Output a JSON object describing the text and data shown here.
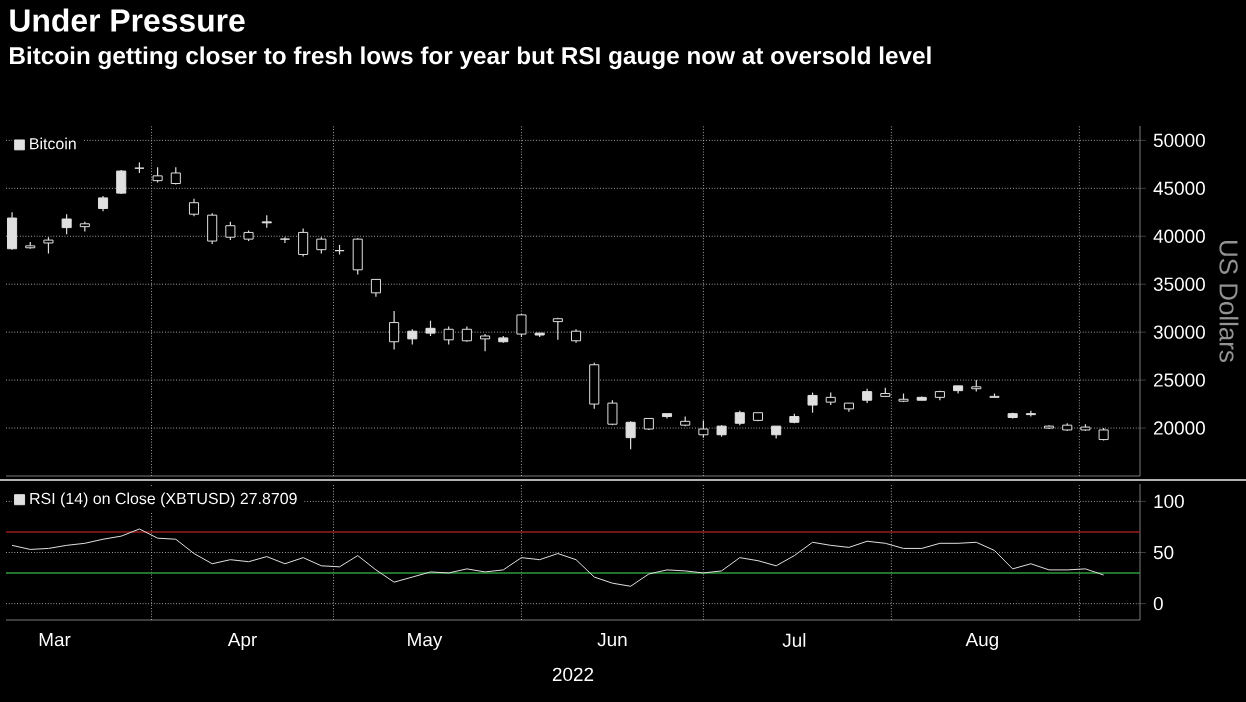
{
  "chart_data": [
    {
      "type": "candlestick",
      "title": "Under Pressure",
      "subtitle": "Bitcoin getting closer to fresh lows for year but RSI gauge now at oversold level",
      "ylabel": "US Dollars",
      "legend": "top left",
      "grid": true,
      "tick_labels": "y",
      "xlim": [
        "2022-03-08",
        "2022-09-11"
      ],
      "xticks": [
        {
          "value": "2022-04-01",
          "label": null
        },
        {
          "value": "2022-05-01",
          "label": null
        },
        {
          "value": "2022-06-01",
          "label": null
        },
        {
          "value": "2022-07-01",
          "label": null
        },
        {
          "value": "2022-08-01",
          "label": null
        },
        {
          "value": "2022-09-01",
          "label": null
        }
      ],
      "ylim": [
        15000,
        51500
      ],
      "yticks": [
        20000,
        25000,
        30000,
        35000,
        40000,
        45000,
        50000
      ],
      "x": [
        "2022-03-09",
        "2022-03-12",
        "2022-03-15",
        "2022-03-18",
        "2022-03-21",
        "2022-03-24",
        "2022-03-27",
        "2022-03-30",
        "2022-04-02",
        "2022-04-05",
        "2022-04-08",
        "2022-04-11",
        "2022-04-14",
        "2022-04-17",
        "2022-04-20",
        "2022-04-23",
        "2022-04-26",
        "2022-04-29",
        "2022-05-02",
        "2022-05-05",
        "2022-05-08",
        "2022-05-11",
        "2022-05-14",
        "2022-05-17",
        "2022-05-20",
        "2022-05-23",
        "2022-05-26",
        "2022-05-29",
        "2022-06-01",
        "2022-06-04",
        "2022-06-07",
        "2022-06-10",
        "2022-06-13",
        "2022-06-16",
        "2022-06-19",
        "2022-06-22",
        "2022-06-25",
        "2022-06-28",
        "2022-07-01",
        "2022-07-04",
        "2022-07-07",
        "2022-07-10",
        "2022-07-13",
        "2022-07-16",
        "2022-07-19",
        "2022-07-22",
        "2022-07-25",
        "2022-07-28",
        "2022-07-31",
        "2022-08-03",
        "2022-08-06",
        "2022-08-09",
        "2022-08-12",
        "2022-08-15",
        "2022-08-18",
        "2022-08-21",
        "2022-08-24",
        "2022-08-27",
        "2022-08-30",
        "2022-09-02",
        "2022-09-05"
      ],
      "series": [
        {
          "name": "Bitcoin",
          "color": "#e0e0e0",
          "ohlc": [
            [
              38700,
              42500,
              38600,
              41900
            ],
            [
              39000,
              39400,
              38700,
              38800
            ],
            [
              39600,
              39900,
              38200,
              39300
            ],
            [
              40900,
              42300,
              40200,
              41800
            ],
            [
              41300,
              41500,
              40500,
              41000
            ],
            [
              42900,
              44200,
              42600,
              44000
            ],
            [
              44500,
              46900,
              44400,
              46800
            ],
            [
              47100,
              47700,
              46600,
              47100
            ],
            [
              46300,
              47200,
              45600,
              45800
            ],
            [
              46600,
              47200,
              45400,
              45500
            ],
            [
              43500,
              43900,
              42100,
              42300
            ],
            [
              42200,
              42400,
              39200,
              39500
            ],
            [
              41100,
              41500,
              39600,
              39900
            ],
            [
              40400,
              40600,
              39500,
              39700
            ],
            [
              41400,
              42200,
              40900,
              41500
            ],
            [
              39700,
              39900,
              39300,
              39700
            ],
            [
              40400,
              40800,
              37900,
              38100
            ],
            [
              39700,
              39900,
              38200,
              38600
            ],
            [
              38500,
              39100,
              38100,
              38500
            ],
            [
              39700,
              39800,
              36000,
              36500
            ],
            [
              35500,
              35500,
              33700,
              34100
            ],
            [
              31000,
              32200,
              28200,
              29000
            ],
            [
              29300,
              30300,
              28700,
              30100
            ],
            [
              29900,
              31200,
              29600,
              30400
            ],
            [
              30300,
              30600,
              28700,
              29200
            ],
            [
              30300,
              30600,
              29000,
              29100
            ],
            [
              29600,
              29800,
              28000,
              29300
            ],
            [
              29000,
              29600,
              28900,
              29400
            ],
            [
              31800,
              31900,
              29500,
              29800
            ],
            [
              29700,
              29900,
              29500,
              29900
            ],
            [
              31400,
              31500,
              29200,
              31100
            ],
            [
              30100,
              30300,
              28900,
              29100
            ],
            [
              26600,
              26800,
              22000,
              22500
            ],
            [
              22600,
              22900,
              20300,
              20400
            ],
            [
              19000,
              20700,
              17800,
              20600
            ],
            [
              21000,
              21000,
              19800,
              19900
            ],
            [
              21200,
              21500,
              21000,
              21500
            ],
            [
              20700,
              21200,
              20200,
              20300
            ],
            [
              19900,
              20800,
              19000,
              19300
            ],
            [
              19300,
              20300,
              19100,
              20200
            ],
            [
              20500,
              21800,
              20300,
              21600
            ],
            [
              21600,
              21600,
              20700,
              20800
            ],
            [
              19300,
              20200,
              18900,
              20200
            ],
            [
              20600,
              21500,
              20500,
              21200
            ],
            [
              22400,
              23700,
              21600,
              23400
            ],
            [
              23200,
              23700,
              22400,
              22700
            ],
            [
              22600,
              22600,
              21700,
              22000
            ],
            [
              22900,
              24100,
              22600,
              23800
            ],
            [
              23600,
              24200,
              23300,
              23300
            ],
            [
              23000,
              23600,
              22700,
              22800
            ],
            [
              22900,
              23300,
              22900,
              23200
            ],
            [
              23800,
              23900,
              22900,
              23200
            ],
            [
              23900,
              24400,
              23600,
              24400
            ],
            [
              24300,
              25000,
              23800,
              24100
            ],
            [
              23300,
              23600,
              23200,
              23200
            ],
            [
              21100,
              21600,
              21000,
              21500
            ],
            [
              21400,
              21800,
              21200,
              21500
            ],
            [
              20200,
              20300,
              19900,
              20000
            ],
            [
              20300,
              20500,
              19700,
              19800
            ],
            [
              20100,
              20400,
              19700,
              19800
            ],
            [
              19800,
              20000,
              18700,
              18800
            ]
          ]
        }
      ]
    },
    {
      "type": "line",
      "xlabel": "2022",
      "legend": "top left",
      "grid": true,
      "xlim": [
        "2022-03-08",
        "2022-09-11"
      ],
      "xticks": [
        {
          "value": "2022-03-16",
          "label": "Mar"
        },
        {
          "value": "2022-04-01",
          "label": null
        },
        {
          "value": "2022-04-16",
          "label": "Apr"
        },
        {
          "value": "2022-05-01",
          "label": null
        },
        {
          "value": "2022-05-16",
          "label": "May"
        },
        {
          "value": "2022-06-01",
          "label": null
        },
        {
          "value": "2022-06-16",
          "label": "Jun"
        },
        {
          "value": "2022-07-01",
          "label": null
        },
        {
          "value": "2022-07-16",
          "label": "Jul"
        },
        {
          "value": "2022-08-01",
          "label": null
        },
        {
          "value": "2022-08-16",
          "label": "Aug"
        },
        {
          "value": "2022-09-01",
          "label": null
        }
      ],
      "ylim": [
        -16,
        117
      ],
      "yticks": [
        0,
        50,
        100
      ],
      "ref_lines": [
        {
          "axis": "y",
          "value": 70,
          "color": "#9b1c1c"
        },
        {
          "axis": "y",
          "value": 30,
          "color": "#2e9a3a"
        }
      ],
      "x": [
        "2022-03-09",
        "2022-03-12",
        "2022-03-15",
        "2022-03-18",
        "2022-03-21",
        "2022-03-24",
        "2022-03-27",
        "2022-03-30",
        "2022-04-02",
        "2022-04-05",
        "2022-04-08",
        "2022-04-11",
        "2022-04-14",
        "2022-04-17",
        "2022-04-20",
        "2022-04-23",
        "2022-04-26",
        "2022-04-29",
        "2022-05-02",
        "2022-05-05",
        "2022-05-08",
        "2022-05-11",
        "2022-05-14",
        "2022-05-17",
        "2022-05-20",
        "2022-05-23",
        "2022-05-26",
        "2022-05-29",
        "2022-06-01",
        "2022-06-04",
        "2022-06-07",
        "2022-06-10",
        "2022-06-13",
        "2022-06-16",
        "2022-06-19",
        "2022-06-22",
        "2022-06-25",
        "2022-06-28",
        "2022-07-01",
        "2022-07-04",
        "2022-07-07",
        "2022-07-10",
        "2022-07-13",
        "2022-07-16",
        "2022-07-19",
        "2022-07-22",
        "2022-07-25",
        "2022-07-28",
        "2022-07-31",
        "2022-08-03",
        "2022-08-06",
        "2022-08-09",
        "2022-08-12",
        "2022-08-15",
        "2022-08-18",
        "2022-08-21",
        "2022-08-24",
        "2022-08-27",
        "2022-08-30",
        "2022-09-02",
        "2022-09-05"
      ],
      "series": [
        {
          "name": "RSI (14)  on Close (XBTUSD) 27.8709",
          "color": "#e0e0e0",
          "values": [
            57,
            53,
            54,
            57,
            59,
            63,
            66,
            73,
            64,
            63,
            49,
            39,
            43,
            41,
            46,
            39,
            45,
            37,
            36,
            47,
            33,
            21,
            26,
            31,
            30,
            34,
            31,
            33,
            45,
            43,
            49,
            43,
            26,
            20,
            17,
            29,
            33,
            32,
            30,
            32,
            45,
            42,
            37,
            47,
            60,
            57,
            55,
            61,
            59,
            54,
            54,
            59,
            59,
            60,
            52,
            34,
            39,
            33,
            33,
            34,
            28
          ]
        }
      ]
    }
  ]
}
